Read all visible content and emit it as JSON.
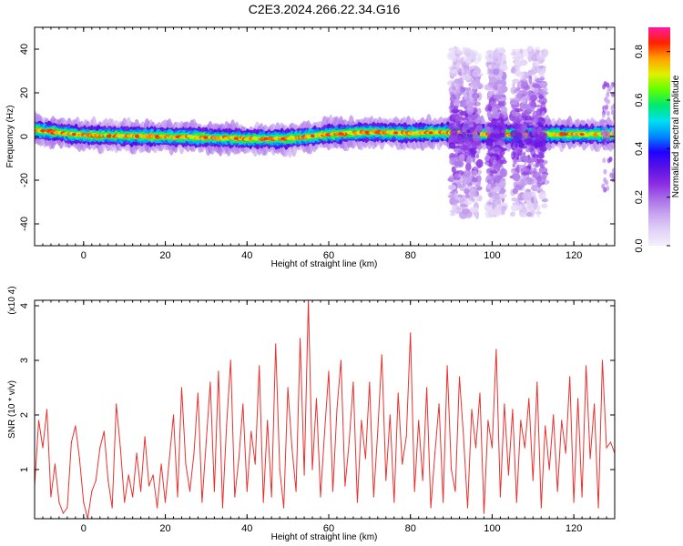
{
  "title": "C2E3.2024.266.22.34.G16",
  "chart_data": [
    {
      "type": "heatmap",
      "xlabel": "Height of straight line (km)",
      "ylabel": "Frequency (Hz)",
      "xlim": [
        -12,
        130
      ],
      "ylim": [
        -50,
        50
      ],
      "xticks": [
        0,
        20,
        40,
        60,
        80,
        100,
        120
      ],
      "yticks": [
        -40,
        -20,
        0,
        20,
        40
      ],
      "colorbar": {
        "label": "Normalized spectral amplitude",
        "range": [
          0.0,
          0.9
        ],
        "ticks": [
          0.0,
          0.2,
          0.4,
          0.6,
          0.8
        ],
        "colors": [
          "#f4f0fc",
          "#e2d2f7",
          "#c9a6f0",
          "#a86ee8",
          "#8a2be2",
          "#5a12e6",
          "#2000ff",
          "#0088ff",
          "#00e0f0",
          "#00e870",
          "#60ff00",
          "#e0f000",
          "#ffa000",
          "#ff2000",
          "#ff1aa0"
        ]
      },
      "band_center_hz": [
        [
          -12,
          3
        ],
        [
          0,
          0.5
        ],
        [
          20,
          0
        ],
        [
          40,
          -1
        ],
        [
          50,
          -1
        ],
        [
          60,
          1
        ],
        [
          70,
          2
        ],
        [
          80,
          1.5
        ],
        [
          90,
          2
        ],
        [
          100,
          1
        ],
        [
          130,
          1
        ]
      ],
      "band_halfwidth_hz": 4,
      "spread_regions_km": [
        [
          90,
          97
        ],
        [
          99,
          103
        ],
        [
          105,
          113
        ]
      ],
      "spread_range_hz": [
        -36,
        40
      ]
    },
    {
      "type": "line",
      "xlabel": "Height of straight line (km)",
      "ylabel": "SNR (10 * v/v)",
      "y_multiplier": "(x10 4)",
      "xlim": [
        -12,
        130
      ],
      "ylim": [
        0.1,
        4.1
      ],
      "xticks": [
        0,
        20,
        40,
        60,
        80,
        100,
        120
      ],
      "yticks": [
        1,
        2,
        3,
        4
      ],
      "color": "#e8312e",
      "x": [
        -12,
        -11,
        -10,
        -9,
        -8,
        -7,
        -6,
        -5,
        -4,
        -3,
        -2,
        -1,
        0,
        1,
        2,
        3,
        4,
        5,
        6,
        7,
        8,
        9,
        10,
        11,
        12,
        13,
        14,
        15,
        16,
        17,
        18,
        19,
        20,
        21,
        22,
        23,
        24,
        25,
        26,
        27,
        28,
        29,
        30,
        31,
        32,
        33,
        34,
        35,
        36,
        37,
        38,
        39,
        40,
        41,
        42,
        43,
        44,
        45,
        46,
        47,
        48,
        49,
        50,
        51,
        52,
        53,
        54,
        55,
        56,
        57,
        58,
        59,
        60,
        61,
        62,
        63,
        64,
        65,
        66,
        67,
        68,
        69,
        70,
        71,
        72,
        73,
        74,
        75,
        76,
        77,
        78,
        79,
        80,
        81,
        82,
        83,
        84,
        85,
        86,
        87,
        88,
        89,
        90,
        91,
        92,
        93,
        94,
        95,
        96,
        97,
        98,
        99,
        100,
        101,
        102,
        103,
        104,
        105,
        106,
        107,
        108,
        109,
        110,
        111,
        112,
        113,
        114,
        115,
        116,
        117,
        118,
        119,
        120,
        121,
        122,
        123,
        124,
        125,
        126,
        127,
        128,
        129,
        130
      ],
      "values": [
        0.7,
        1.9,
        1.4,
        2.1,
        0.5,
        1.1,
        0.4,
        0.2,
        0.3,
        1.5,
        1.8,
        1.2,
        0.4,
        0.1,
        0.6,
        0.8,
        1.4,
        1.7,
        0.8,
        0.3,
        2.2,
        1.4,
        0.4,
        0.9,
        0.5,
        1.3,
        0.6,
        1.6,
        0.7,
        0.9,
        0.3,
        1.1,
        0.4,
        1.2,
        2.0,
        0.5,
        2.5,
        1.1,
        0.6,
        1.3,
        2.4,
        0.4,
        1.5,
        2.6,
        0.6,
        2.8,
        0.3,
        1.8,
        3.0,
        0.5,
        1.2,
        2.2,
        0.6,
        1.7,
        1.1,
        2.9,
        0.4,
        1.9,
        0.5,
        3.3,
        1.0,
        0.3,
        2.5,
        1.4,
        0.6,
        3.4,
        0.9,
        4.1,
        1.0,
        2.3,
        0.5,
        1.7,
        2.8,
        0.6,
        2.1,
        3.0,
        0.7,
        1.5,
        2.6,
        0.4,
        1.9,
        1.2,
        2.6,
        0.5,
        1.7,
        3.1,
        0.8,
        2.0,
        0.4,
        2.4,
        1.1,
        1.6,
        3.5,
        0.6,
        1.9,
        0.8,
        2.5,
        0.3,
        1.3,
        2.2,
        0.4,
        2.9,
        1.0,
        0.6,
        2.7,
        1.6,
        0.3,
        2.1,
        1.4,
        2.4,
        0.2,
        1.9,
        1.4,
        3.2,
        0.5,
        2.2,
        0.9,
        2.1,
        0.4,
        1.9,
        1.4,
        2.3,
        0.8,
        2.6,
        0.3,
        1.8,
        1.0,
        2.0,
        0.6,
        1.9,
        1.3,
        2.7,
        0.4,
        2.3,
        0.5,
        2.9,
        1.2,
        2.2,
        0.3,
        3.0,
        1.4,
        1.5,
        1.3
      ]
    }
  ]
}
